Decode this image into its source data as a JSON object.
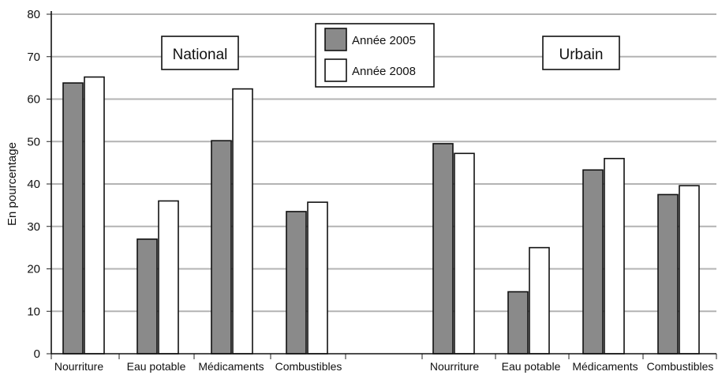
{
  "chart_data": {
    "type": "bar",
    "ylabel": "En pourcentage",
    "ylim": [
      0,
      80
    ],
    "yticks": [
      0,
      10,
      20,
      30,
      40,
      50,
      60,
      70,
      80
    ],
    "grid": true,
    "legend_position": "top-center",
    "series": [
      {
        "name": "Année 2005",
        "color": "#8a8a8a"
      },
      {
        "name": "Année 2008",
        "color": "#ffffff"
      }
    ],
    "panels": [
      {
        "label": "National",
        "categories": [
          "Nourriture",
          "Eau potable",
          "Médicaments",
          "Combustibles"
        ],
        "values_2005": [
          63.8,
          27.0,
          50.2,
          33.5
        ],
        "values_2008": [
          65.2,
          36.0,
          62.4,
          35.7
        ]
      },
      {
        "label": "Urbain",
        "categories": [
          "Nourriture",
          "Eau potable",
          "Médicaments",
          "Combustibles"
        ],
        "values_2005": [
          49.5,
          14.6,
          43.3,
          37.5
        ],
        "values_2008": [
          47.2,
          25.0,
          46.0,
          39.6
        ]
      }
    ]
  }
}
